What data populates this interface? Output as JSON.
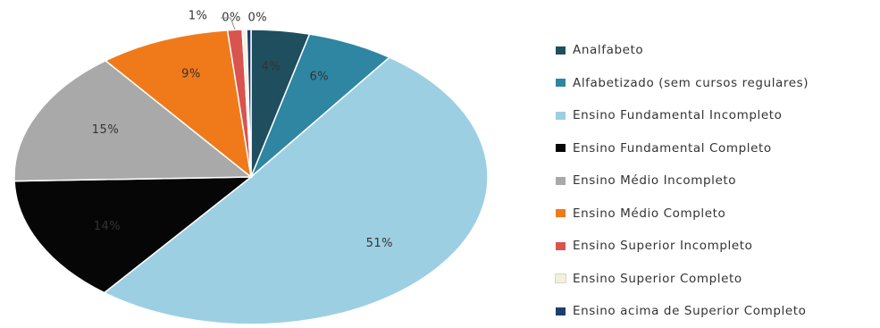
{
  "chart_data": {
    "type": "pie",
    "title": "",
    "slices": [
      {
        "label": "Analfabeto",
        "value": 4,
        "display": "4%",
        "color": "#1f4e5f"
      },
      {
        "label": "Alfabetizado (sem cursos regulares)",
        "value": 6,
        "display": "6%",
        "color": "#2e86a3"
      },
      {
        "label": "Ensino Fundamental Incompleto",
        "value": 51,
        "display": "51%",
        "color": "#9dcfe3"
      },
      {
        "label": "Ensino Fundamental Completo",
        "value": 14,
        "display": "14%",
        "color": "#060606"
      },
      {
        "label": "Ensino Médio Incompleto",
        "value": 15,
        "display": "15%",
        "color": "#a9a9a9"
      },
      {
        "label": "Ensino Médio Completo",
        "value": 9,
        "display": "9%",
        "color": "#f07a1a"
      },
      {
        "label": "Ensino Superior Incompleto",
        "value": 1,
        "display": "1%",
        "color": "#d9534f"
      },
      {
        "label": "Ensino Superior Completo",
        "value": 0.3,
        "display": "0%",
        "color": "#f3f1dc"
      },
      {
        "label": "Ensino acima de Superior Completo",
        "value": 0.3,
        "display": "0%",
        "color": "#1f3d6e"
      }
    ],
    "legend_position": "right"
  }
}
